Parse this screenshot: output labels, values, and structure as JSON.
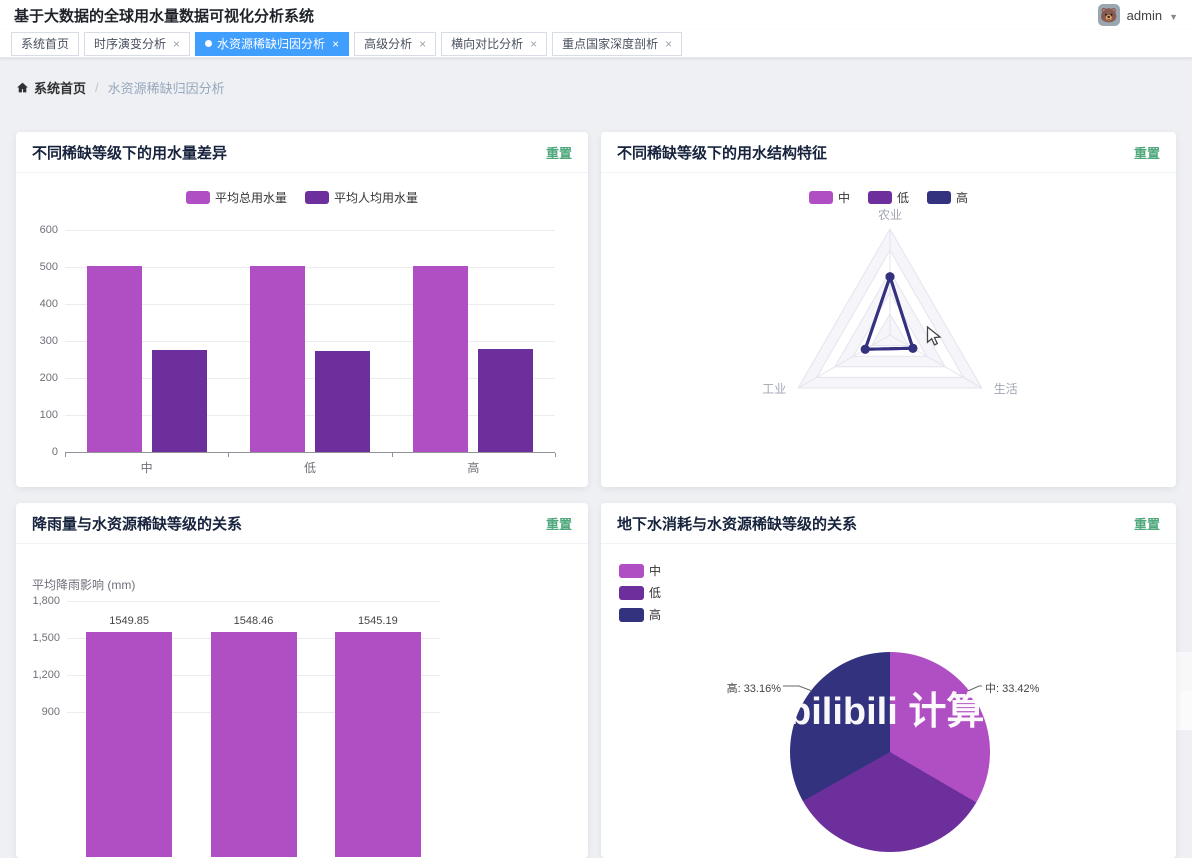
{
  "header": {
    "title": "基于大数据的全球用水量数据可视化分析系统",
    "user": "admin"
  },
  "tabs": [
    {
      "label": "系统首页",
      "closable": false,
      "active": false
    },
    {
      "label": "时序演变分析",
      "closable": true,
      "active": false
    },
    {
      "label": "水资源稀缺归因分析",
      "closable": true,
      "active": true
    },
    {
      "label": "高级分析",
      "closable": true,
      "active": false
    },
    {
      "label": "横向对比分析",
      "closable": true,
      "active": false
    },
    {
      "label": "重点国家深度剖析",
      "closable": true,
      "active": false
    }
  ],
  "breadcrumb": {
    "home": "系统首页",
    "separator": "/",
    "current": "水资源稀缺归因分析"
  },
  "watermark": {
    "text": "bilibili 计算"
  },
  "colors": {
    "magenta": "#b04fc4",
    "purple": "#6d2f9c",
    "navy": "#32327e",
    "tab_active": "#409eff",
    "reset_green": "#4fa87c",
    "background": "#eef0f3"
  },
  "cards": [
    {
      "title": "不同稀缺等级下的用水量差异",
      "action": "重置",
      "chart_data": {
        "type": "bar",
        "categories": [
          "中",
          "低",
          "高"
        ],
        "series": [
          {
            "name": "平均总用水量",
            "color": "#b04fc4",
            "values": [
              503,
              503,
              502
            ]
          },
          {
            "name": "平均人均用水量",
            "color": "#6d2f9c",
            "values": [
              277,
              272,
              278
            ]
          }
        ],
        "ylim": [
          0,
          600
        ],
        "yticks": [
          0,
          100,
          200,
          300,
          400,
          500,
          600
        ],
        "legend_position": "top",
        "grid": true
      }
    },
    {
      "title": "不同稀缺等级下的用水结构特征",
      "action": "重置",
      "chart_data": {
        "type": "radar",
        "indicators": [
          "农业",
          "生活",
          "工业"
        ],
        "levels": 5,
        "series": [
          {
            "name": "中",
            "color": "#b04fc4",
            "values_norm": [
              0.55,
              0.25,
              0.27
            ]
          },
          {
            "name": "低",
            "color": "#6d2f9c",
            "values_norm": [
              0.55,
              0.25,
              0.27
            ]
          },
          {
            "name": "高",
            "color": "#32327e",
            "values_norm": [
              0.55,
              0.25,
              0.27
            ]
          }
        ],
        "legend_position": "top"
      }
    },
    {
      "title": "降雨量与水资源稀缺等级的关系",
      "action": "重置",
      "chart_data": {
        "type": "bar",
        "series": [
          {
            "name": "平均降雨影响",
            "color": "#b04fc4",
            "values": [
              1549.85,
              1548.46,
              1545.19
            ]
          }
        ],
        "data_labels": [
          "1549.85",
          "1548.46",
          "1545.19"
        ],
        "ylabel": "平均降雨影响 (mm)",
        "yticks": [
          {
            "label": "1,800",
            "value": 1800
          },
          {
            "label": "1,500",
            "value": 1500
          },
          {
            "label": "1,200",
            "value": 1200
          },
          {
            "label": "900",
            "value": 900
          }
        ],
        "grid": true
      }
    },
    {
      "title": "地下水消耗与水资源稀缺等级的关系",
      "action": "重置",
      "chart_data": {
        "type": "pie",
        "slices": [
          {
            "name": "中",
            "pct": 33.42,
            "color": "#b04fc4",
            "label": "中: 33.42%"
          },
          {
            "name": "低",
            "pct": 33.42,
            "color": "#6d2f9c",
            "label": ""
          },
          {
            "name": "高",
            "pct": 33.16,
            "color": "#32327e",
            "label": "高: 33.16%"
          }
        ],
        "legend": [
          "中",
          "低",
          "高"
        ],
        "legend_position": "left"
      }
    }
  ]
}
